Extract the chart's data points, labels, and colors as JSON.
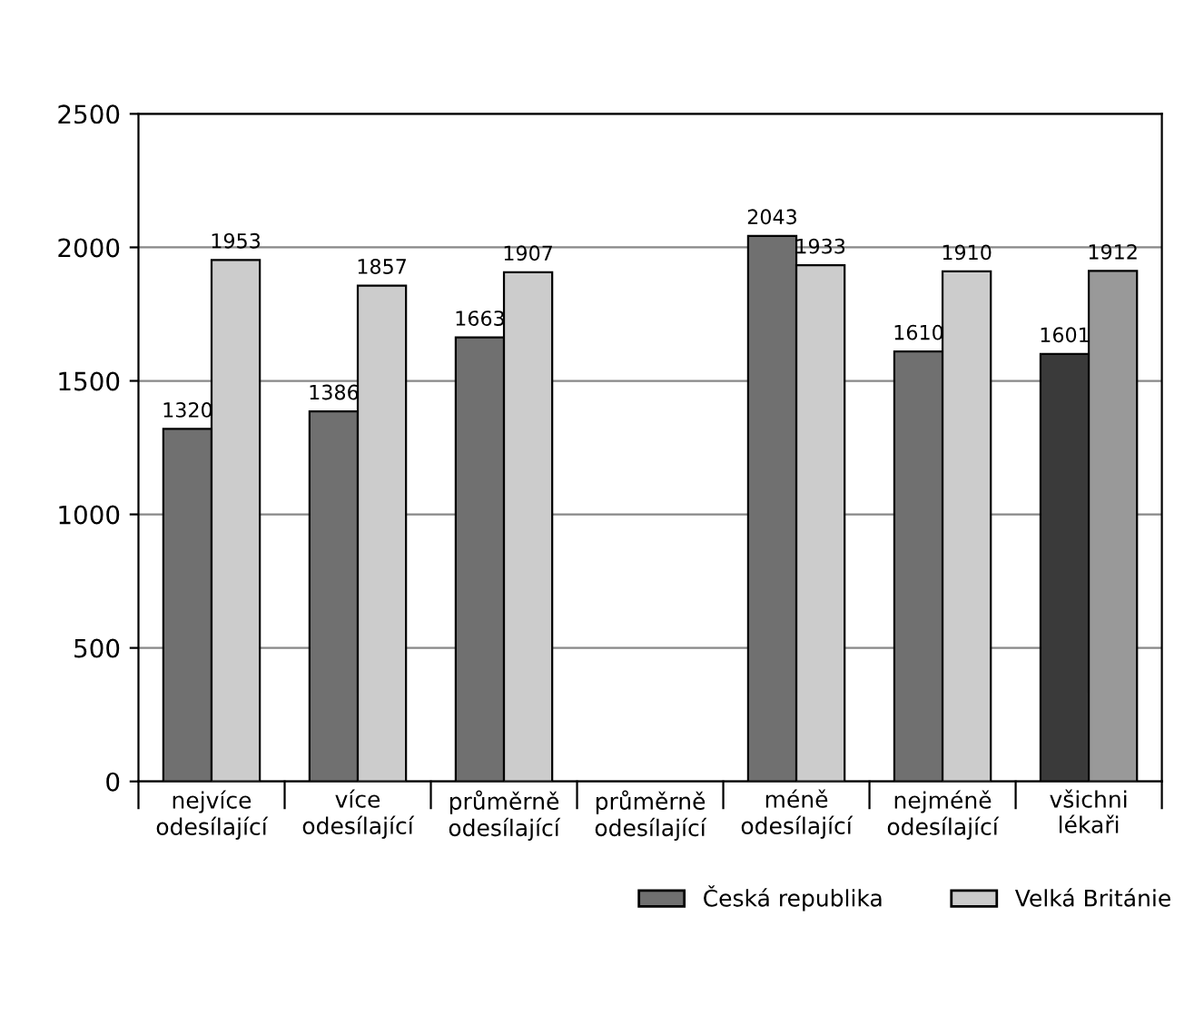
{
  "chart_data": {
    "type": "bar",
    "categories": [
      "nejvíce\nodesílající",
      "více\nodesílající",
      "průměrně\nodesílající",
      "průměrně\nodesílající",
      "méně\nodesílající",
      "nejméně\nodesílající",
      "všichni\nlékaři"
    ],
    "series": [
      {
        "name": "Česká republika",
        "color": "#707070",
        "colors": [
          "#707070",
          "#707070",
          "#707070",
          "#707070",
          "#707070",
          "#707070",
          "#3a3a3a"
        ],
        "values": [
          1320,
          1386,
          1663,
          null,
          2043,
          1610,
          1601
        ]
      },
      {
        "name": "Velká Británie",
        "color": "#cccccc",
        "colors": [
          "#cccccc",
          "#cccccc",
          "#cccccc",
          "#cccccc",
          "#cccccc",
          "#cccccc",
          "#999999"
        ],
        "values": [
          1953,
          1857,
          1907,
          null,
          1933,
          1910,
          1912
        ]
      }
    ],
    "ylim": [
      0,
      2500
    ],
    "yticks": [
      0,
      500,
      1000,
      1500,
      2000,
      2500
    ],
    "grid": "y",
    "legend": "bottom right",
    "data_labels": true
  }
}
